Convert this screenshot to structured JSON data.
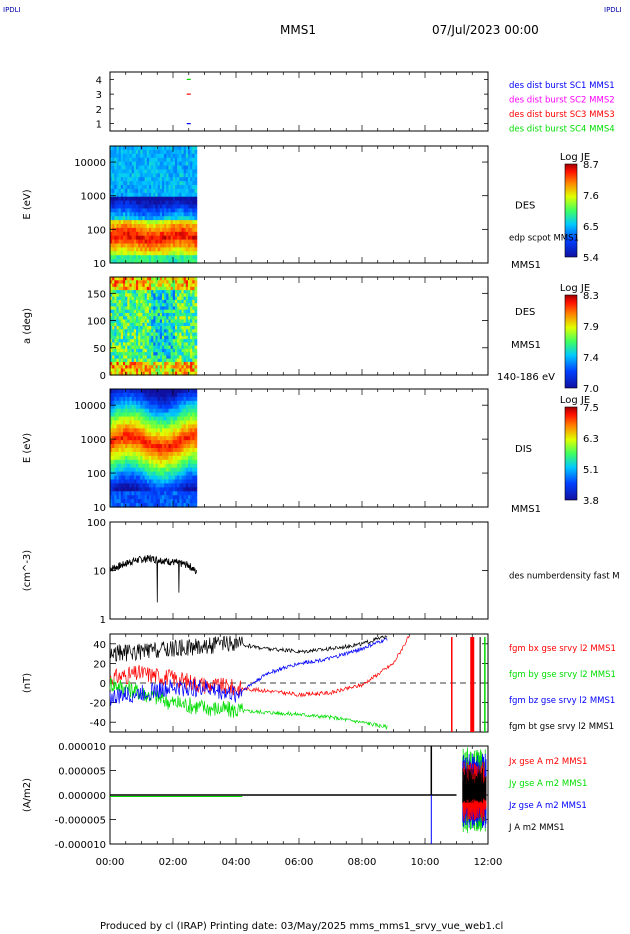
{
  "corner_left": "IPDLI",
  "corner_right": "IPDLI",
  "header": {
    "spacecraft": "MMS1",
    "datetime": "07/Jul/2023 00:00"
  },
  "footer": {
    "text": "Produced by cl (IRAP)   Printing date: 03/May/2025   mms_mms1_srvy_vue_web1.cl"
  },
  "colors": {
    "blue": "#0000ff",
    "magenta": "#ff00ff",
    "red": "#ff0000",
    "green": "#00dd00",
    "black": "#000000"
  },
  "chart_data": [
    {
      "type": "scatter",
      "panel": "availability",
      "yticks": [
        "1",
        "2",
        "3",
        "4"
      ],
      "ylim": [
        0.5,
        4.5
      ],
      "legend": [
        {
          "label": "des dist burst SC1 MMS1",
          "color": "#0000ff"
        },
        {
          "label": "des dist burst SC2 MMS2",
          "color": "#ff00ff"
        },
        {
          "label": "des dist burst SC3 MMS3",
          "color": "#ff0000"
        },
        {
          "label": "des dist burst SC4 MMS4",
          "color": "#00dd00"
        }
      ],
      "marks": [
        {
          "t": 2.5,
          "y": 1,
          "color": "#0000ff"
        },
        {
          "t": 2.5,
          "y": 3,
          "color": "#ff0000"
        },
        {
          "t": 2.5,
          "y": 4,
          "color": "#00dd00"
        }
      ]
    },
    {
      "type": "heatmap",
      "panel": "des-energy",
      "ylabel": "E (eV)",
      "yscale": "log",
      "ylim": [
        10,
        30000
      ],
      "yticks": [
        "10",
        "100",
        "1000",
        "10000"
      ],
      "label": "DES",
      "annotation": "edp scpot MMS1",
      "sublabel": "MMS1",
      "colorbar": {
        "title": "Log JE",
        "ticks": [
          "8.7",
          "7.6",
          "6.5",
          "5.4"
        ],
        "range": [
          5.4,
          8.7
        ]
      },
      "data_until": 2.75
    },
    {
      "type": "heatmap",
      "panel": "des-pitch",
      "ylabel": "a (deg)",
      "ylim": [
        0,
        180
      ],
      "yticks": [
        "0",
        "50",
        "100",
        "150"
      ],
      "label": "DES",
      "sublabel": "MMS1",
      "energy_range": "140-186 eV",
      "colorbar": {
        "title": "Log JE",
        "ticks": [
          "8.3",
          "7.9",
          "7.4",
          "7.0"
        ],
        "range": [
          7.0,
          8.3
        ]
      },
      "data_until": 2.75
    },
    {
      "type": "heatmap",
      "panel": "dis-energy",
      "ylabel": "E (eV)",
      "yscale": "log",
      "ylim": [
        10,
        30000
      ],
      "yticks": [
        "10",
        "100",
        "1000",
        "10000"
      ],
      "label": "DIS",
      "sublabel": "MMS1",
      "colorbar": {
        "title": "Log JE",
        "ticks": [
          "7.5",
          "6.3",
          "5.1",
          "3.8"
        ],
        "range": [
          3.8,
          7.5
        ]
      },
      "data_until": 2.75
    },
    {
      "type": "line",
      "panel": "density",
      "ylabel": "(cm^-3)",
      "yscale": "log",
      "ylim": [
        1,
        100
      ],
      "yticks": [
        "1",
        "10",
        "100"
      ],
      "series": [
        {
          "name": "des numberdensity fast M",
          "color": "#000000",
          "t": [
            0.0,
            0.25,
            0.5,
            0.75,
            1.0,
            1.25,
            1.5,
            1.75,
            2.0,
            2.25,
            2.5,
            2.75
          ],
          "values": [
            11,
            12,
            14,
            16,
            17,
            18,
            17,
            16,
            15,
            14,
            13,
            9
          ]
        }
      ]
    },
    {
      "type": "line",
      "panel": "fgm",
      "ylabel": "(nT)",
      "ylim": [
        -50,
        50
      ],
      "yticks": [
        "-40",
        "-20",
        "0",
        "20",
        "40"
      ],
      "series": [
        {
          "name": "fgm bx gse srvy l2 MMS1",
          "color": "#ff0000",
          "t": [
            0,
            1,
            2,
            3,
            4,
            5,
            6,
            7,
            8,
            9,
            9.5
          ],
          "values": [
            5,
            10,
            5,
            -2,
            -5,
            -8,
            -12,
            -10,
            -2,
            20,
            48
          ]
        },
        {
          "name": "fgm by gse srvy l2 MMS1",
          "color": "#00dd00",
          "t": [
            0,
            1,
            2,
            3,
            4,
            5,
            6,
            7,
            8,
            8.8
          ],
          "values": [
            0,
            -10,
            -20,
            -25,
            -28,
            -30,
            -32,
            -35,
            -40,
            -45
          ]
        },
        {
          "name": "fgm bz gse srvy l2 MMS1",
          "color": "#0000ff",
          "t": [
            0,
            1,
            2,
            3,
            4,
            5,
            6,
            7,
            8,
            8.8
          ],
          "values": [
            -15,
            -10,
            -5,
            -5,
            -12,
            10,
            20,
            25,
            35,
            45
          ]
        },
        {
          "name": "fgm bt gse srvy l2 MMS1",
          "color": "#000000",
          "t": [
            0,
            1,
            2,
            3,
            4,
            5,
            6,
            7,
            8,
            8.8
          ],
          "values": [
            30,
            32,
            35,
            38,
            40,
            35,
            32,
            35,
            40,
            48
          ]
        }
      ]
    },
    {
      "type": "line",
      "panel": "current",
      "ylabel": "(A/m2)",
      "ylim": [
        -1e-05,
        1e-05
      ],
      "yticks": [
        "-0.000010",
        "-0.000005",
        "0.000000",
        "0.000005",
        "0.000010"
      ],
      "series": [
        {
          "name": "Jx gse A m2 MMS1",
          "color": "#ff0000"
        },
        {
          "name": "Jy gse A m2 MMS1",
          "color": "#00dd00"
        },
        {
          "name": "Jz gse A m2 MMS1",
          "color": "#0000ff"
        },
        {
          "name": "J A m2 MMS1",
          "color": "#000000"
        }
      ]
    }
  ],
  "time_axis": {
    "ticks": [
      "00:00",
      "02:00",
      "04:00",
      "06:00",
      "08:00",
      "10:00",
      "12:00"
    ],
    "range_hours": [
      0,
      12
    ]
  }
}
